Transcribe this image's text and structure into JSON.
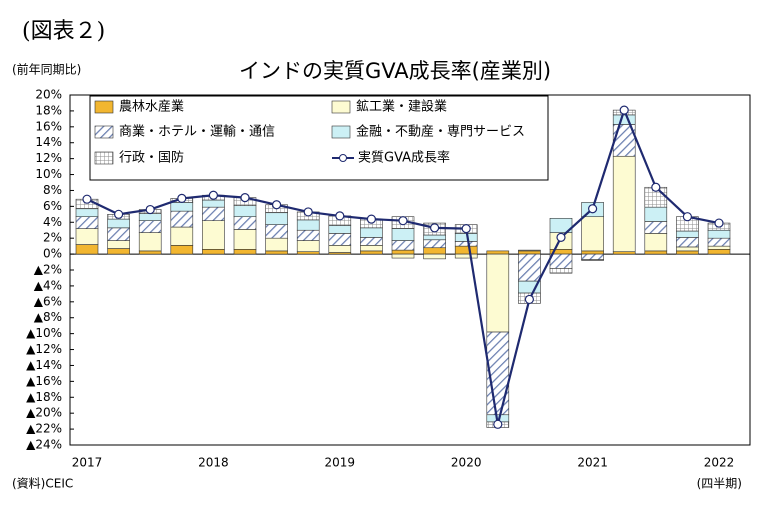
{
  "chart_data": {
    "type": "stacked-bar-line",
    "figure_label": "(図表２)",
    "title": "インドの実質GVA成長率(産業別)",
    "y_axis_label": "(前年同期比)",
    "x_axis_label": "(四半期)",
    "source": "(資料)CEIC",
    "categories": [
      "2017",
      null,
      null,
      null,
      "2018",
      null,
      null,
      null,
      "2019",
      null,
      null,
      null,
      "2020",
      null,
      null,
      null,
      "2021",
      null,
      null,
      null,
      "2022"
    ],
    "series": [
      {
        "name": "農林水産業",
        "color": "#f2b630",
        "pattern": "solid",
        "values": [
          1.2,
          0.7,
          0.4,
          1.1,
          0.6,
          0.6,
          0.4,
          0.3,
          0.2,
          0.4,
          0.5,
          0.8,
          1.0,
          0.4,
          0.4,
          0.6,
          0.4,
          0.3,
          0.4,
          0.4,
          0.6
        ]
      },
      {
        "name": "鉱工業・建設業",
        "color": "#fdfbd2",
        "pattern": "solid",
        "values": [
          2.0,
          1.0,
          2.3,
          2.3,
          3.6,
          2.5,
          1.6,
          1.4,
          0.9,
          0.7,
          -0.5,
          -0.6,
          -0.5,
          -9.8,
          0.1,
          2.1,
          4.3,
          12.0,
          2.2,
          0.5,
          0.4
        ]
      },
      {
        "name": "商業・ホテル・運輸・通信",
        "color": "#6a7fb0",
        "pattern": "hatch",
        "values": [
          1.5,
          1.6,
          1.5,
          2.0,
          1.7,
          1.6,
          1.7,
          1.3,
          1.5,
          1.0,
          1.2,
          1.0,
          0.6,
          -10.4,
          -3.4,
          -1.8,
          -0.7,
          4.0,
          1.5,
          1.2,
          1.0
        ]
      },
      {
        "name": "金融・不動産・専門サービス",
        "color": "#ccf0f5",
        "pattern": "solid",
        "values": [
          1.0,
          1.1,
          0.9,
          1.1,
          0.9,
          1.4,
          1.5,
          1.3,
          1.0,
          1.2,
          1.5,
          0.6,
          1.0,
          -0.9,
          -1.5,
          1.8,
          1.8,
          1.2,
          1.8,
          0.8,
          1.0
        ]
      },
      {
        "name": "行政・国防",
        "color": "#8c8c8c",
        "pattern": "grid",
        "values": [
          1.2,
          0.6,
          0.5,
          0.5,
          0.6,
          1.0,
          1.0,
          1.0,
          1.2,
          1.1,
          1.5,
          1.5,
          1.1,
          -0.7,
          -1.3,
          -0.6,
          -0.1,
          0.6,
          2.5,
          1.8,
          0.9
        ]
      }
    ],
    "line": {
      "name": "実質GVA成長率",
      "color": "#1f2a70",
      "values": [
        6.9,
        5.0,
        5.6,
        7.0,
        7.4,
        7.1,
        6.2,
        5.3,
        4.8,
        4.4,
        4.2,
        3.3,
        3.2,
        -21.4,
        -5.7,
        2.1,
        5.7,
        18.1,
        8.4,
        4.7,
        3.9
      ]
    },
    "ylim": [
      -24,
      20
    ],
    "yticks": [
      {
        "value": -24,
        "label": "▲24%"
      },
      {
        "value": -22,
        "label": "▲22%"
      },
      {
        "value": -20,
        "label": "▲20%"
      },
      {
        "value": -18,
        "label": "▲18%"
      },
      {
        "value": -16,
        "label": "▲16%"
      },
      {
        "value": -14,
        "label": "▲14%"
      },
      {
        "value": -12,
        "label": "▲12%"
      },
      {
        "value": -10,
        "label": "▲10%"
      },
      {
        "value": -8,
        "label": "▲8%"
      },
      {
        "value": -6,
        "label": "▲6%"
      },
      {
        "value": -4,
        "label": "▲4%"
      },
      {
        "value": -2,
        "label": "▲2%"
      },
      {
        "value": 0,
        "label": "0%"
      },
      {
        "value": 2,
        "label": "2%"
      },
      {
        "value": 4,
        "label": "4%"
      },
      {
        "value": 6,
        "label": "6%"
      },
      {
        "value": 8,
        "label": "8%"
      },
      {
        "value": 10,
        "label": "10%"
      },
      {
        "value": 12,
        "label": "12%"
      },
      {
        "value": 14,
        "label": "14%"
      },
      {
        "value": 16,
        "label": "16%"
      },
      {
        "value": 18,
        "label": "18%"
      },
      {
        "value": 20,
        "label": "20%"
      }
    ]
  }
}
